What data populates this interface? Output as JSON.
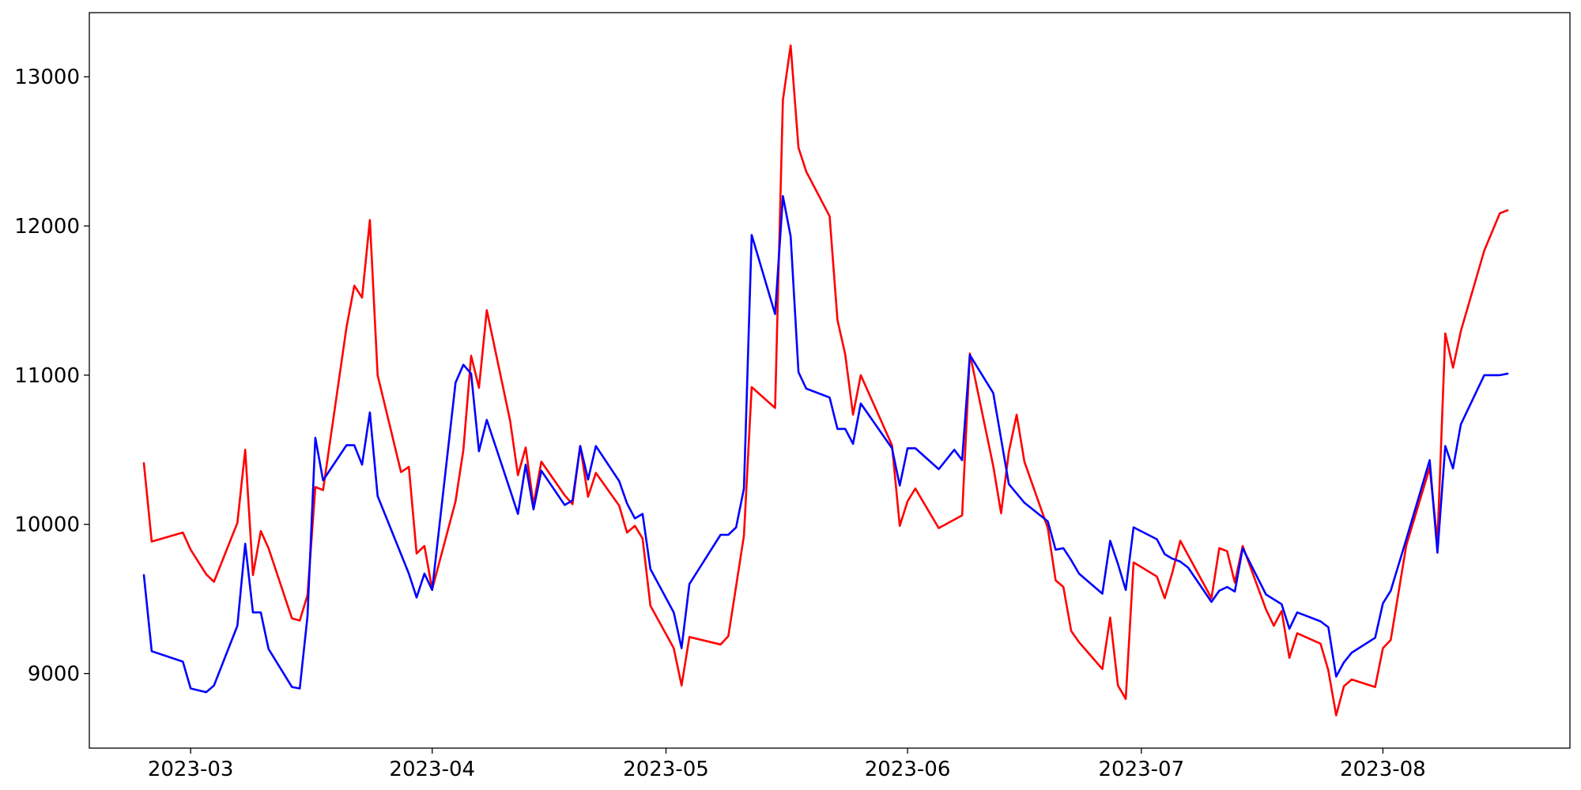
{
  "chart_data": {
    "type": "line",
    "title": "",
    "xlabel": "",
    "ylabel": "",
    "x_ticks": [
      "2023-03",
      "2023-04",
      "2023-05",
      "2023-06",
      "2023-07",
      "2023-08"
    ],
    "y_ticks": [
      "9000",
      "10000",
      "11000",
      "12000",
      "13000"
    ],
    "xlim": [
      "2023-02-16",
      "2023-08-25"
    ],
    "ylim": [
      8500,
      13430
    ],
    "grid": false,
    "legend": "none",
    "series": [
      {
        "color": "#ff0000",
        "points": [
          [
            "2023-02-23",
            10410
          ],
          [
            "2023-02-24",
            9885
          ],
          [
            "2023-02-28",
            9945
          ],
          [
            "2023-03-01",
            9830
          ],
          [
            "2023-03-03",
            9665
          ],
          [
            "2023-03-04",
            9615
          ],
          [
            "2023-03-07",
            10010
          ],
          [
            "2023-03-08",
            10500
          ],
          [
            "2023-03-09",
            9660
          ],
          [
            "2023-03-10",
            9955
          ],
          [
            "2023-03-11",
            9840
          ],
          [
            "2023-03-14",
            9370
          ],
          [
            "2023-03-15",
            9355
          ],
          [
            "2023-03-16",
            9525
          ],
          [
            "2023-03-17",
            10250
          ],
          [
            "2023-03-18",
            10230
          ],
          [
            "2023-03-21",
            11320
          ],
          [
            "2023-03-22",
            11600
          ],
          [
            "2023-03-23",
            11520
          ],
          [
            "2023-03-24",
            12040
          ],
          [
            "2023-03-25",
            11000
          ],
          [
            "2023-03-28",
            10350
          ],
          [
            "2023-03-29",
            10385
          ],
          [
            "2023-03-30",
            9805
          ],
          [
            "2023-03-31",
            9855
          ],
          [
            "2023-04-01",
            9565
          ],
          [
            "2023-04-04",
            10155
          ],
          [
            "2023-04-05",
            10500
          ],
          [
            "2023-04-06",
            11130
          ],
          [
            "2023-04-07",
            10915
          ],
          [
            "2023-04-08",
            11435
          ],
          [
            "2023-04-11",
            10695
          ],
          [
            "2023-04-12",
            10330
          ],
          [
            "2023-04-13",
            10515
          ],
          [
            "2023-04-14",
            10130
          ],
          [
            "2023-04-15",
            10420
          ],
          [
            "2023-04-18",
            10195
          ],
          [
            "2023-04-19",
            10135
          ],
          [
            "2023-04-20",
            10525
          ],
          [
            "2023-04-21",
            10185
          ],
          [
            "2023-04-22",
            10345
          ],
          [
            "2023-04-25",
            10125
          ],
          [
            "2023-04-26",
            9945
          ],
          [
            "2023-04-27",
            9990
          ],
          [
            "2023-04-28",
            9905
          ],
          [
            "2023-04-29",
            9455
          ],
          [
            "2023-05-02",
            9170
          ],
          [
            "2023-05-03",
            8920
          ],
          [
            "2023-05-04",
            9245
          ],
          [
            "2023-05-08",
            9195
          ],
          [
            "2023-05-09",
            9250
          ],
          [
            "2023-05-10",
            9585
          ],
          [
            "2023-05-11",
            9925
          ],
          [
            "2023-05-12",
            10920
          ],
          [
            "2023-05-15",
            10780
          ],
          [
            "2023-05-16",
            12845
          ],
          [
            "2023-05-17",
            13210
          ],
          [
            "2023-05-18",
            12525
          ],
          [
            "2023-05-19",
            12365
          ],
          [
            "2023-05-22",
            12065
          ],
          [
            "2023-05-23",
            11370
          ],
          [
            "2023-05-24",
            11140
          ],
          [
            "2023-05-25",
            10735
          ],
          [
            "2023-05-26",
            11000
          ],
          [
            "2023-05-30",
            10530
          ],
          [
            "2023-05-31",
            9990
          ],
          [
            "2023-06-01",
            10155
          ],
          [
            "2023-06-02",
            10240
          ],
          [
            "2023-06-05",
            9975
          ],
          [
            "2023-06-08",
            10060
          ],
          [
            "2023-06-09",
            11145
          ],
          [
            "2023-06-12",
            10390
          ],
          [
            "2023-06-13",
            10075
          ],
          [
            "2023-06-14",
            10485
          ],
          [
            "2023-06-15",
            10735
          ],
          [
            "2023-06-16",
            10420
          ],
          [
            "2023-06-19",
            9975
          ],
          [
            "2023-06-20",
            9625
          ],
          [
            "2023-06-21",
            9580
          ],
          [
            "2023-06-22",
            9285
          ],
          [
            "2023-06-23",
            9210
          ],
          [
            "2023-06-26",
            9030
          ],
          [
            "2023-06-27",
            9375
          ],
          [
            "2023-06-28",
            8920
          ],
          [
            "2023-06-29",
            8830
          ],
          [
            "2023-06-30",
            9745
          ],
          [
            "2023-07-03",
            9650
          ],
          [
            "2023-07-04",
            9505
          ],
          [
            "2023-07-05",
            9680
          ],
          [
            "2023-07-06",
            9890
          ],
          [
            "2023-07-10",
            9505
          ],
          [
            "2023-07-11",
            9840
          ],
          [
            "2023-07-12",
            9820
          ],
          [
            "2023-07-13",
            9610
          ],
          [
            "2023-07-14",
            9855
          ],
          [
            "2023-07-17",
            9430
          ],
          [
            "2023-07-18",
            9320
          ],
          [
            "2023-07-19",
            9420
          ],
          [
            "2023-07-20",
            9105
          ],
          [
            "2023-07-21",
            9270
          ],
          [
            "2023-07-24",
            9200
          ],
          [
            "2023-07-25",
            9020
          ],
          [
            "2023-07-26",
            8720
          ],
          [
            "2023-07-27",
            8915
          ],
          [
            "2023-07-28",
            8960
          ],
          [
            "2023-07-31",
            8910
          ],
          [
            "2023-08-01",
            9170
          ],
          [
            "2023-08-02",
            9225
          ],
          [
            "2023-08-04",
            9860
          ],
          [
            "2023-08-07",
            10380
          ],
          [
            "2023-08-08",
            9880
          ],
          [
            "2023-08-09",
            11280
          ],
          [
            "2023-08-10",
            11050
          ],
          [
            "2023-08-11",
            11295
          ],
          [
            "2023-08-14",
            11835
          ],
          [
            "2023-08-16",
            12085
          ],
          [
            "2023-08-17",
            12105
          ]
        ]
      },
      {
        "color": "#0000ff",
        "points": [
          [
            "2023-02-23",
            9660
          ],
          [
            "2023-02-24",
            9150
          ],
          [
            "2023-02-28",
            9080
          ],
          [
            "2023-03-01",
            8900
          ],
          [
            "2023-03-03",
            8875
          ],
          [
            "2023-03-04",
            8920
          ],
          [
            "2023-03-07",
            9320
          ],
          [
            "2023-03-08",
            9870
          ],
          [
            "2023-03-09",
            9410
          ],
          [
            "2023-03-10",
            9410
          ],
          [
            "2023-03-11",
            9165
          ],
          [
            "2023-03-14",
            8910
          ],
          [
            "2023-03-15",
            8900
          ],
          [
            "2023-03-16",
            9385
          ],
          [
            "2023-03-17",
            10580
          ],
          [
            "2023-03-18",
            10295
          ],
          [
            "2023-03-21",
            10530
          ],
          [
            "2023-03-22",
            10530
          ],
          [
            "2023-03-23",
            10400
          ],
          [
            "2023-03-24",
            10750
          ],
          [
            "2023-03-25",
            10190
          ],
          [
            "2023-03-28",
            9800
          ],
          [
            "2023-03-29",
            9670
          ],
          [
            "2023-03-30",
            9510
          ],
          [
            "2023-03-31",
            9670
          ],
          [
            "2023-04-01",
            9560
          ],
          [
            "2023-04-04",
            10950
          ],
          [
            "2023-04-05",
            11070
          ],
          [
            "2023-04-06",
            11010
          ],
          [
            "2023-04-07",
            10490
          ],
          [
            "2023-04-08",
            10700
          ],
          [
            "2023-04-11",
            10230
          ],
          [
            "2023-04-12",
            10070
          ],
          [
            "2023-04-13",
            10400
          ],
          [
            "2023-04-14",
            10100
          ],
          [
            "2023-04-15",
            10360
          ],
          [
            "2023-04-18",
            10130
          ],
          [
            "2023-04-19",
            10160
          ],
          [
            "2023-04-20",
            10525
          ],
          [
            "2023-04-21",
            10300
          ],
          [
            "2023-04-22",
            10525
          ],
          [
            "2023-04-25",
            10290
          ],
          [
            "2023-04-26",
            10140
          ],
          [
            "2023-04-27",
            10040
          ],
          [
            "2023-04-28",
            10070
          ],
          [
            "2023-04-29",
            9700
          ],
          [
            "2023-05-02",
            9410
          ],
          [
            "2023-05-03",
            9170
          ],
          [
            "2023-05-04",
            9600
          ],
          [
            "2023-05-08",
            9930
          ],
          [
            "2023-05-09",
            9930
          ],
          [
            "2023-05-10",
            9980
          ],
          [
            "2023-05-11",
            10240
          ],
          [
            "2023-05-12",
            11940
          ],
          [
            "2023-05-15",
            11410
          ],
          [
            "2023-05-16",
            12200
          ],
          [
            "2023-05-17",
            11930
          ],
          [
            "2023-05-18",
            11020
          ],
          [
            "2023-05-19",
            10910
          ],
          [
            "2023-05-22",
            10850
          ],
          [
            "2023-05-23",
            10640
          ],
          [
            "2023-05-24",
            10640
          ],
          [
            "2023-05-25",
            10540
          ],
          [
            "2023-05-26",
            10810
          ],
          [
            "2023-05-30",
            10510
          ],
          [
            "2023-05-31",
            10260
          ],
          [
            "2023-06-01",
            10510
          ],
          [
            "2023-06-02",
            10510
          ],
          [
            "2023-06-05",
            10370
          ],
          [
            "2023-06-07",
            10500
          ],
          [
            "2023-06-08",
            10430
          ],
          [
            "2023-06-09",
            11135
          ],
          [
            "2023-06-12",
            10880
          ],
          [
            "2023-06-14",
            10270
          ],
          [
            "2023-06-16",
            10145
          ],
          [
            "2023-06-19",
            10020
          ],
          [
            "2023-06-20",
            9830
          ],
          [
            "2023-06-21",
            9840
          ],
          [
            "2023-06-22",
            9760
          ],
          [
            "2023-06-23",
            9670
          ],
          [
            "2023-06-26",
            9535
          ],
          [
            "2023-06-27",
            9890
          ],
          [
            "2023-06-28",
            9735
          ],
          [
            "2023-06-29",
            9560
          ],
          [
            "2023-06-30",
            9980
          ],
          [
            "2023-07-03",
            9900
          ],
          [
            "2023-07-04",
            9800
          ],
          [
            "2023-07-05",
            9770
          ],
          [
            "2023-07-06",
            9750
          ],
          [
            "2023-07-07",
            9710
          ],
          [
            "2023-07-10",
            9480
          ],
          [
            "2023-07-11",
            9555
          ],
          [
            "2023-07-12",
            9580
          ],
          [
            "2023-07-13",
            9550
          ],
          [
            "2023-07-14",
            9840
          ],
          [
            "2023-07-17",
            9530
          ],
          [
            "2023-07-19",
            9465
          ],
          [
            "2023-07-20",
            9300
          ],
          [
            "2023-07-21",
            9410
          ],
          [
            "2023-07-24",
            9350
          ],
          [
            "2023-07-25",
            9310
          ],
          [
            "2023-07-26",
            8980
          ],
          [
            "2023-07-27",
            9075
          ],
          [
            "2023-07-28",
            9140
          ],
          [
            "2023-07-31",
            9240
          ],
          [
            "2023-08-01",
            9470
          ],
          [
            "2023-08-02",
            9555
          ],
          [
            "2023-08-04",
            9900
          ],
          [
            "2023-08-07",
            10430
          ],
          [
            "2023-08-08",
            9810
          ],
          [
            "2023-08-09",
            10525
          ],
          [
            "2023-08-10",
            10375
          ],
          [
            "2023-08-11",
            10670
          ],
          [
            "2023-08-14",
            11000
          ],
          [
            "2023-08-16",
            11000
          ],
          [
            "2023-08-17",
            11010
          ]
        ]
      }
    ]
  }
}
